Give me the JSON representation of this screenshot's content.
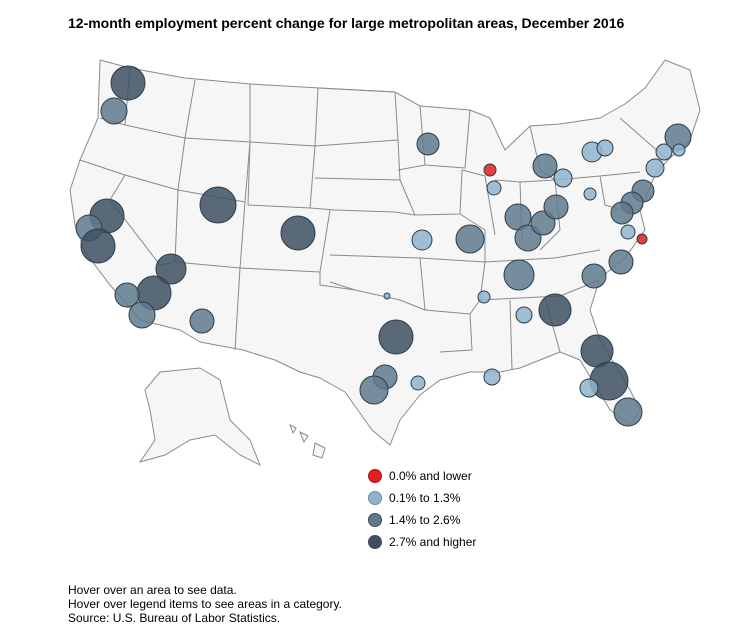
{
  "title": "12-month employment percent change for large metropolitan areas, December 2016",
  "legend": [
    {
      "label": "0.0% and lower",
      "color": "#e02020"
    },
    {
      "label": "0.1% to 1.3%",
      "color": "#8fb3cc"
    },
    {
      "label": "1.4% to 2.6%",
      "color": "#5f7a8e"
    },
    {
      "label": "2.7% and higher",
      "color": "#3d5062"
    }
  ],
  "notes": {
    "hover_area": "Hover over an area to see data.",
    "hover_legend": "Hover over legend items to see areas in a category.",
    "source": "Source: U.S. Bureau of Labor Statistics."
  },
  "colors": {
    "state_fill": "#f6f6f6",
    "state_border": "#8a8a8a",
    "bubble_border": "#2e3c48"
  }
}
